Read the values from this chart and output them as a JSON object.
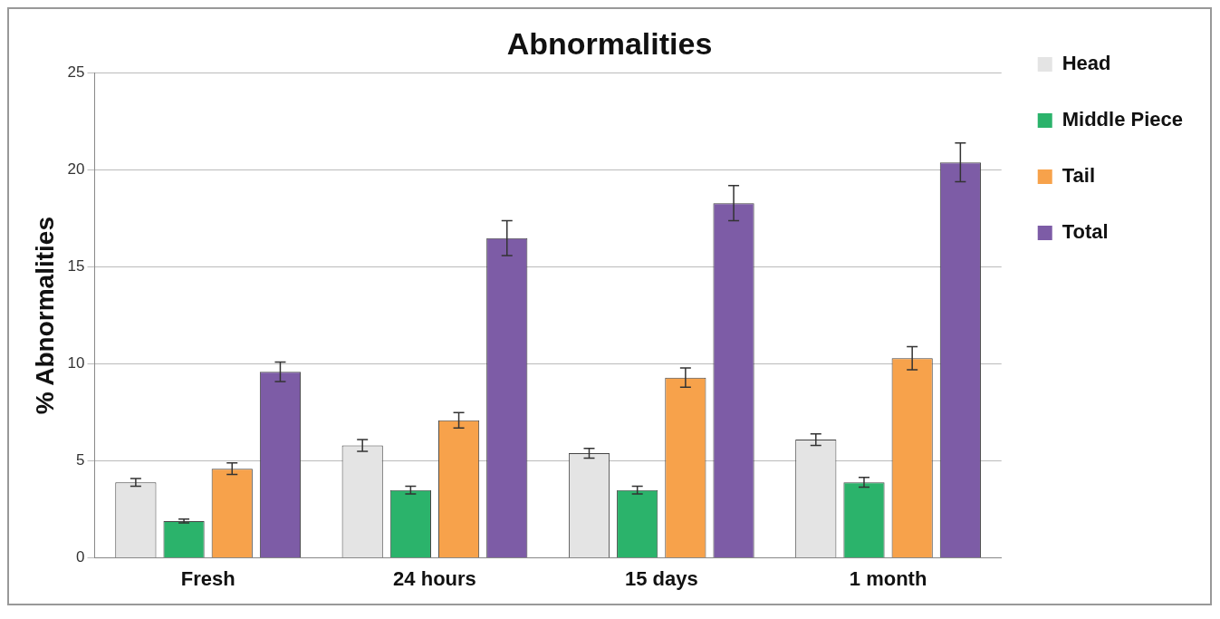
{
  "chart_data": {
    "type": "bar",
    "title": "Abnormalities",
    "ylabel": "% Abnormalities",
    "categories": [
      "Fresh",
      "24 hours",
      "15 days",
      "1 month"
    ],
    "series": [
      {
        "name": "Head",
        "color": "#e4e4e4",
        "values": [
          3.9,
          5.8,
          5.4,
          6.1
        ],
        "errors": [
          0.2,
          0.3,
          0.25,
          0.3
        ]
      },
      {
        "name": "Middle Piece",
        "color": "#2bb36b",
        "values": [
          1.9,
          3.5,
          3.5,
          3.9
        ],
        "errors": [
          0.1,
          0.2,
          0.2,
          0.25
        ]
      },
      {
        "name": "Tail",
        "color": "#f7a24b",
        "values": [
          4.6,
          7.1,
          9.3,
          10.3
        ],
        "errors": [
          0.3,
          0.4,
          0.5,
          0.6
        ]
      },
      {
        "name": "Total",
        "color": "#7d5ca6",
        "values": [
          9.6,
          16.5,
          18.3,
          20.4
        ],
        "errors": [
          0.5,
          0.9,
          0.9,
          1.0
        ]
      }
    ],
    "ylim": [
      0,
      25
    ],
    "yticks": [
      0,
      5,
      10,
      15,
      20,
      25
    ],
    "grid": "y",
    "legend": "right"
  }
}
